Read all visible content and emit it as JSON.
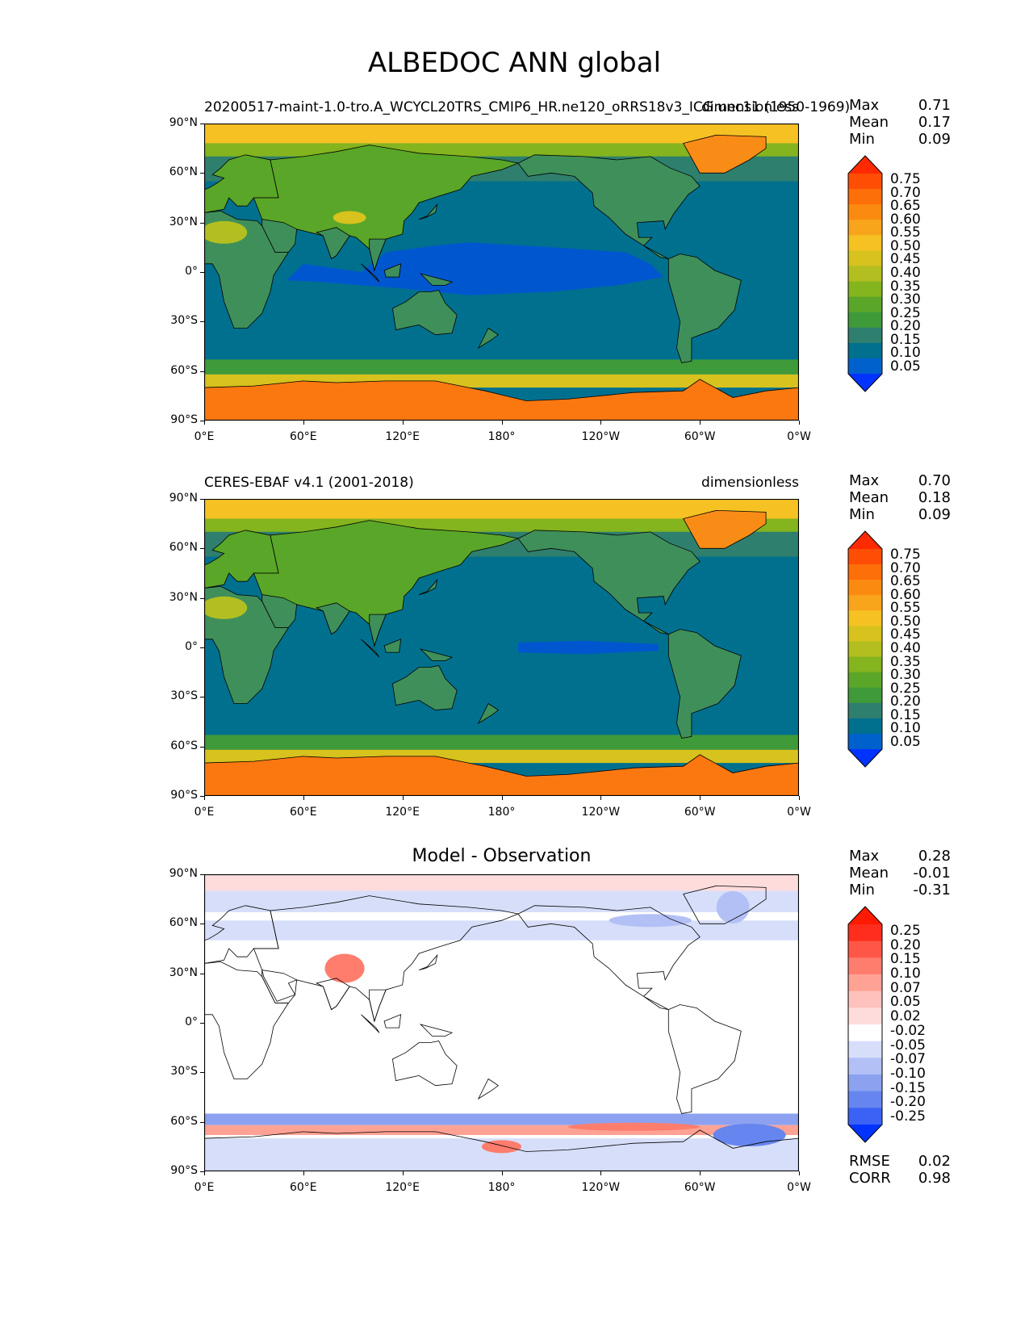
{
  "figure": {
    "title": "ALBEDOC ANN global"
  },
  "lat_ticks": [
    "90°N",
    "60°N",
    "30°N",
    "0°",
    "30°S",
    "60°S",
    "90°S"
  ],
  "lon_ticks": [
    "0°E",
    "60°E",
    "120°E",
    "180°",
    "120°W",
    "60°W",
    "0°W"
  ],
  "panels": [
    {
      "left_label": "20200517-maint-1.0-tro.A_WCYCL20TRS_CMIP6_HR.ne120_oRRS18v3_ICG.unc11 (1950-1969)",
      "right_label": "dimensionless",
      "center_title": "",
      "stats": [
        {
          "name": "Max",
          "value": "0.71"
        },
        {
          "name": "Mean",
          "value": "0.17"
        },
        {
          "name": "Min",
          "value": "0.09"
        }
      ],
      "colorbar_labels": [
        "0.75",
        "0.70",
        "0.65",
        "0.60",
        "0.55",
        "0.50",
        "0.45",
        "0.40",
        "0.35",
        "0.30",
        "0.25",
        "0.20",
        "0.15",
        "0.10",
        "0.05"
      ]
    },
    {
      "left_label": "CERES-EBAF v4.1 (2001-2018)",
      "right_label": "dimensionless",
      "center_title": "",
      "stats": [
        {
          "name": "Max",
          "value": "0.70"
        },
        {
          "name": "Mean",
          "value": "0.18"
        },
        {
          "name": "Min",
          "value": "0.09"
        }
      ],
      "colorbar_labels": [
        "0.75",
        "0.70",
        "0.65",
        "0.60",
        "0.55",
        "0.50",
        "0.45",
        "0.40",
        "0.35",
        "0.30",
        "0.25",
        "0.20",
        "0.15",
        "0.10",
        "0.05"
      ]
    },
    {
      "left_label": "",
      "right_label": "",
      "center_title": "Model - Observation",
      "stats": [
        {
          "name": "Max",
          "value": "0.28"
        },
        {
          "name": "Mean",
          "value": "-0.01"
        },
        {
          "name": "Min",
          "value": "-0.31"
        }
      ],
      "extra_stats": [
        {
          "name": "RMSE",
          "value": "0.02"
        },
        {
          "name": "CORR",
          "value": "0.98"
        }
      ],
      "colorbar_labels": [
        "0.25",
        "0.20",
        "0.15",
        "0.10",
        "0.07",
        "0.05",
        "0.02",
        "-0.02",
        "-0.05",
        "-0.07",
        "-0.10",
        "-0.15",
        "-0.20",
        "-0.25"
      ]
    }
  ],
  "colors": {
    "abs_scale": [
      "#0033ff",
      "#0061cc",
      "#00708f",
      "#2f7f6e",
      "#3f9a3a",
      "#5aa628",
      "#84b41e",
      "#b3bf20",
      "#d7c21e",
      "#f6c223",
      "#f8a51b",
      "#fb8b10",
      "#fd6f09",
      "#fe4e05",
      "#ff2a00"
    ],
    "diff_scale": [
      "#0033ff",
      "#3b62f5",
      "#6685ee",
      "#8ca2f0",
      "#b3c0f5",
      "#d7defa",
      "#ffffff",
      "#ffdcdc",
      "#ffc1bc",
      "#ffa294",
      "#ff7d6d",
      "#ff5747",
      "#ff2d1d",
      "#ff1a00"
    ],
    "ocean": "#00708f",
    "tropical_ocean": "#0056cf",
    "land": "#3f8f5a",
    "arctic": "#f6c223",
    "antarctic": "#fb7810",
    "greenland": "#f98c17"
  },
  "chart_data": [
    {
      "type": "heatmap",
      "title": "",
      "left_label": "20200517-maint-1.0-tro.A_WCYCL20TRS_CMIP6_HR.ne120_oRRS18v3_ICG.unc11 (1950-1969)",
      "right_label": "dimensionless",
      "x_range": [
        0,
        360
      ],
      "y_range": [
        -90,
        90
      ],
      "levels": [
        0.05,
        0.1,
        0.15,
        0.2,
        0.25,
        0.3,
        0.35,
        0.4,
        0.45,
        0.5,
        0.55,
        0.6,
        0.65,
        0.7,
        0.75
      ],
      "max": 0.71,
      "mean": 0.17,
      "min": 0.09
    },
    {
      "type": "heatmap",
      "title": "",
      "left_label": "CERES-EBAF v4.1 (2001-2018)",
      "right_label": "dimensionless",
      "x_range": [
        0,
        360
      ],
      "y_range": [
        -90,
        90
      ],
      "levels": [
        0.05,
        0.1,
        0.15,
        0.2,
        0.25,
        0.3,
        0.35,
        0.4,
        0.45,
        0.5,
        0.55,
        0.6,
        0.65,
        0.7,
        0.75
      ],
      "max": 0.7,
      "mean": 0.18,
      "min": 0.09
    },
    {
      "type": "heatmap",
      "title": "Model - Observation",
      "x_range": [
        0,
        360
      ],
      "y_range": [
        -90,
        90
      ],
      "levels": [
        -0.25,
        -0.2,
        -0.15,
        -0.1,
        -0.07,
        -0.05,
        -0.02,
        0.02,
        0.05,
        0.07,
        0.1,
        0.15,
        0.2,
        0.25
      ],
      "max": 0.28,
      "mean": -0.01,
      "min": -0.31,
      "rmse": 0.02,
      "corr": 0.98
    }
  ]
}
